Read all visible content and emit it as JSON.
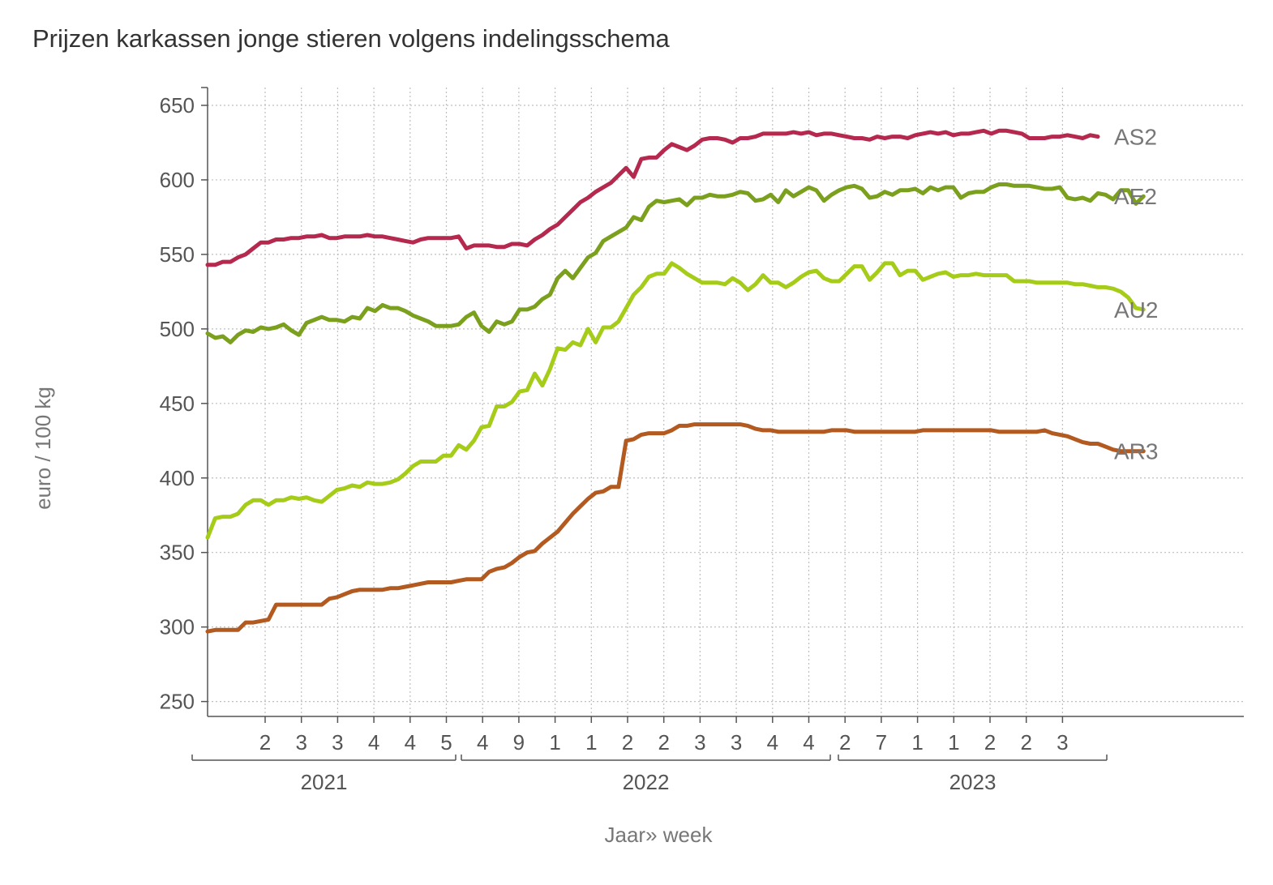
{
  "chart_data": {
    "type": "line",
    "title": "Prijzen karkassen jonge stieren volgens indelingsschema",
    "ylabel": "euro / 100 kg",
    "xlabel": "Jaar» week",
    "ylim": [
      240,
      660
    ],
    "y_ticks": [
      250,
      300,
      350,
      400,
      450,
      500,
      550,
      600,
      650
    ],
    "x_tick_labels": [
      "2",
      "3",
      "3",
      "4",
      "4",
      "5",
      "4",
      "9",
      "1",
      "1",
      "2",
      "2",
      "3",
      "3",
      "4",
      "4",
      "2",
      "7",
      "1",
      "1",
      "2",
      "2",
      "3"
    ],
    "year_groups": [
      "2021",
      "2022",
      "2023"
    ],
    "grid": true,
    "legend": "labels at line ends (right)",
    "series": [
      {
        "name": "AS2",
        "color": "#b5294e",
        "values": [
          543,
          543,
          545,
          545,
          548,
          550,
          554,
          558,
          558,
          560,
          560,
          561,
          561,
          562,
          562,
          563,
          561,
          561,
          562,
          562,
          562,
          563,
          562,
          562,
          561,
          560,
          559,
          558,
          560,
          561,
          561,
          561,
          561,
          562,
          554,
          556,
          556,
          556,
          555,
          555,
          557,
          557,
          556,
          560,
          563,
          567,
          570,
          575,
          580,
          585,
          588,
          592,
          595,
          598,
          603,
          608,
          602,
          614,
          615,
          615,
          620,
          624,
          622,
          620,
          623,
          627,
          628,
          628,
          627,
          625,
          628,
          628,
          629,
          631,
          631,
          631,
          631,
          632,
          631,
          632,
          630,
          631,
          631,
          630,
          629,
          628,
          628,
          627,
          629,
          628,
          629,
          629,
          628,
          630,
          631,
          632,
          631,
          632,
          630,
          631,
          631,
          632,
          633,
          631,
          633,
          633,
          632,
          631,
          628,
          628,
          628,
          629,
          629,
          630,
          629,
          628,
          630,
          629
        ]
      },
      {
        "name": "AE2",
        "color": "#7aa01d",
        "values": [
          497,
          494,
          495,
          491,
          496,
          499,
          498,
          501,
          500,
          501,
          503,
          499,
          496,
          504,
          506,
          508,
          506,
          506,
          505,
          508,
          507,
          514,
          512,
          516,
          514,
          514,
          512,
          509,
          507,
          505,
          502,
          502,
          502,
          503,
          508,
          511,
          502,
          498,
          505,
          503,
          505,
          513,
          513,
          515,
          520,
          523,
          534,
          539,
          534,
          541,
          548,
          551,
          559,
          562,
          565,
          568,
          575,
          573,
          582,
          586,
          585,
          586,
          587,
          583,
          588,
          588,
          590,
          589,
          589,
          590,
          592,
          591,
          586,
          587,
          590,
          585,
          593,
          589,
          592,
          595,
          593,
          586,
          590,
          593,
          595,
          596,
          594,
          588,
          589,
          592,
          590,
          593,
          593,
          594,
          591,
          595,
          593,
          595,
          595,
          588,
          591,
          592,
          592,
          595,
          597,
          597,
          596,
          596,
          596,
          595,
          594,
          594,
          595,
          588,
          587,
          588,
          586,
          591,
          590,
          587,
          593,
          593,
          584,
          589
        ]
      },
      {
        "name": "AU2",
        "color": "#a6cc1a",
        "values": [
          360,
          373,
          374,
          374,
          376,
          382,
          385,
          385,
          382,
          385,
          385,
          387,
          386,
          387,
          385,
          384,
          388,
          392,
          393,
          395,
          394,
          397,
          396,
          396,
          397,
          399,
          403,
          408,
          411,
          411,
          411,
          415,
          415,
          422,
          419,
          425,
          434,
          435,
          448,
          448,
          451,
          458,
          459,
          470,
          462,
          473,
          487,
          486,
          491,
          489,
          500,
          491,
          501,
          501,
          505,
          514,
          523,
          528,
          535,
          537,
          537,
          544,
          541,
          537,
          534,
          531,
          531,
          531,
          530,
          534,
          531,
          526,
          530,
          536,
          531,
          531,
          528,
          531,
          535,
          538,
          539,
          534,
          532,
          532,
          537,
          542,
          542,
          533,
          538,
          544,
          544,
          536,
          539,
          539,
          533,
          535,
          537,
          538,
          535,
          536,
          536,
          537,
          536,
          536,
          536,
          536,
          532,
          532,
          532,
          531,
          531,
          531,
          531,
          531,
          530,
          530,
          529,
          528,
          528,
          527,
          525,
          521,
          514,
          513
        ]
      },
      {
        "name": "AR3",
        "color": "#b35a20",
        "values": [
          297,
          298,
          298,
          298,
          298,
          303,
          303,
          304,
          305,
          315,
          315,
          315,
          315,
          315,
          315,
          315,
          319,
          320,
          322,
          324,
          325,
          325,
          325,
          325,
          326,
          326,
          327,
          328,
          329,
          330,
          330,
          330,
          330,
          331,
          332,
          332,
          332,
          337,
          339,
          340,
          343,
          347,
          350,
          351,
          356,
          360,
          364,
          370,
          376,
          381,
          386,
          390,
          391,
          394,
          394,
          425,
          426,
          429,
          430,
          430,
          430,
          432,
          435,
          435,
          436,
          436,
          436,
          436,
          436,
          436,
          436,
          435,
          433,
          432,
          432,
          431,
          431,
          431,
          431,
          431,
          431,
          431,
          432,
          432,
          432,
          431,
          431,
          431,
          431,
          431,
          431,
          431,
          431,
          431,
          432,
          432,
          432,
          432,
          432,
          432,
          432,
          432,
          432,
          432,
          431,
          431,
          431,
          431,
          431,
          431,
          432,
          430,
          429,
          428,
          426,
          424,
          423,
          423,
          421,
          419,
          418,
          418,
          418,
          418
        ]
      }
    ]
  }
}
